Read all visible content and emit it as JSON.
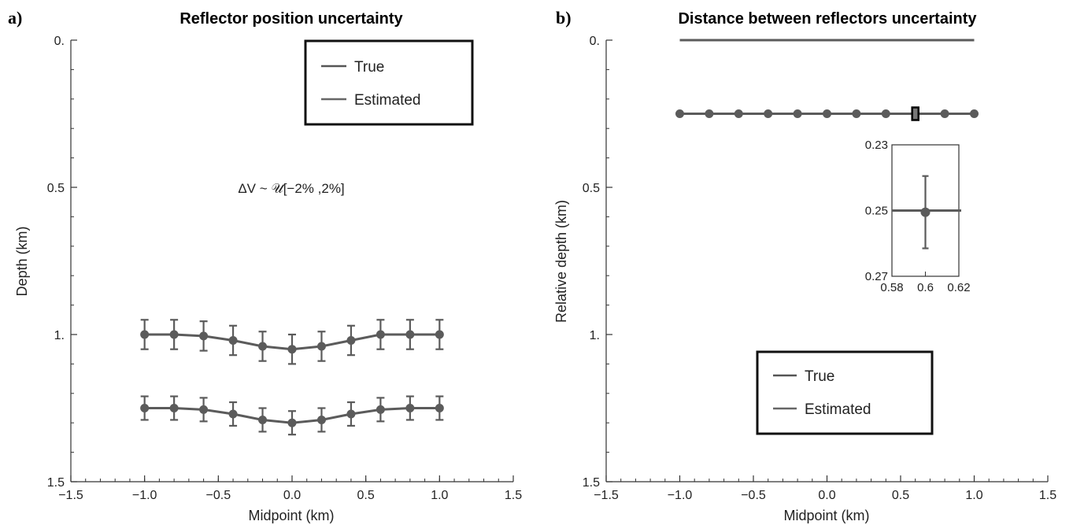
{
  "chart_data": [
    {
      "panel_label": "a)",
      "type": "line",
      "title": "Reflector position uncertainty",
      "xlabel": "Midpoint (km)",
      "ylabel": "Depth (km)",
      "xlim": [
        -1.5,
        1.5
      ],
      "ylim": [
        1.5,
        0
      ],
      "y_inverted": true,
      "x_ticks": [
        "-1.5",
        "-1.0",
        "-0.5",
        "0.0",
        "0.5",
        "1.0",
        "1.5"
      ],
      "y_ticks": [
        "0.",
        "0.5",
        "1.",
        "1.5"
      ],
      "annotation": "ΔV ~ 𝒰[−2% ,2%]",
      "legend": {
        "placement": "top-right",
        "entries": [
          "True",
          "Estimated"
        ]
      },
      "x": [
        -1.0,
        -0.8,
        -0.6,
        -0.4,
        -0.2,
        0.0,
        0.2,
        0.4,
        0.6,
        0.8,
        1.0
      ],
      "series": [
        {
          "values": [
            1.0,
            1.0,
            1.005,
            1.02,
            1.04,
            1.05,
            1.04,
            1.02,
            1.0,
            1.0,
            1.0
          ],
          "errors": [
            0.05,
            0.05,
            0.05,
            0.05,
            0.05,
            0.05,
            0.05,
            0.05,
            0.05,
            0.05,
            0.05
          ]
        },
        {
          "values": [
            1.25,
            1.25,
            1.255,
            1.27,
            1.29,
            1.3,
            1.29,
            1.27,
            1.255,
            1.25,
            1.25
          ],
          "errors": [
            0.04,
            0.04,
            0.04,
            0.04,
            0.04,
            0.04,
            0.04,
            0.04,
            0.04,
            0.04,
            0.04
          ]
        }
      ]
    },
    {
      "panel_label": "b)",
      "type": "line",
      "title": "Distance between reflectors uncertainty",
      "xlabel": "Midpoint (km)",
      "ylabel": "Relative depth (km)",
      "xlim": [
        -1.5,
        1.5
      ],
      "ylim": [
        1.5,
        0
      ],
      "y_inverted": true,
      "x_ticks": [
        "-1.5",
        "-1.0",
        "-0.5",
        "0.0",
        "0.5",
        "1.0",
        "1.5"
      ],
      "y_ticks": [
        "0.",
        "0.5",
        "1.",
        "1.5"
      ],
      "legend": {
        "placement": "bottom-center",
        "entries": [
          "True",
          "Estimated"
        ]
      },
      "x": [
        -1.0,
        -0.8,
        -0.6,
        -0.4,
        -0.2,
        0.0,
        0.2,
        0.4,
        0.6,
        0.8,
        1.0
      ],
      "series": [
        {
          "values": [
            0.0,
            0.0,
            0.0,
            0.0,
            0.0,
            0.0,
            0.0,
            0.0,
            0.0,
            0.0,
            0.0
          ],
          "markers": false
        },
        {
          "values": [
            0.25,
            0.25,
            0.25,
            0.25,
            0.25,
            0.25,
            0.25,
            0.25,
            0.25,
            0.25,
            0.25
          ],
          "markers": true
        }
      ],
      "inset": {
        "xlim": [
          0.58,
          0.62
        ],
        "ylim": [
          0.27,
          0.23
        ],
        "x_ticks": [
          "0.58",
          "0.6",
          "0.62"
        ],
        "y_ticks": [
          "0.23",
          "0.25",
          "0.27"
        ],
        "point": {
          "x": 0.6,
          "y": 0.2505,
          "y_error": 0.011,
          "x_error": 0.0012
        }
      }
    }
  ]
}
